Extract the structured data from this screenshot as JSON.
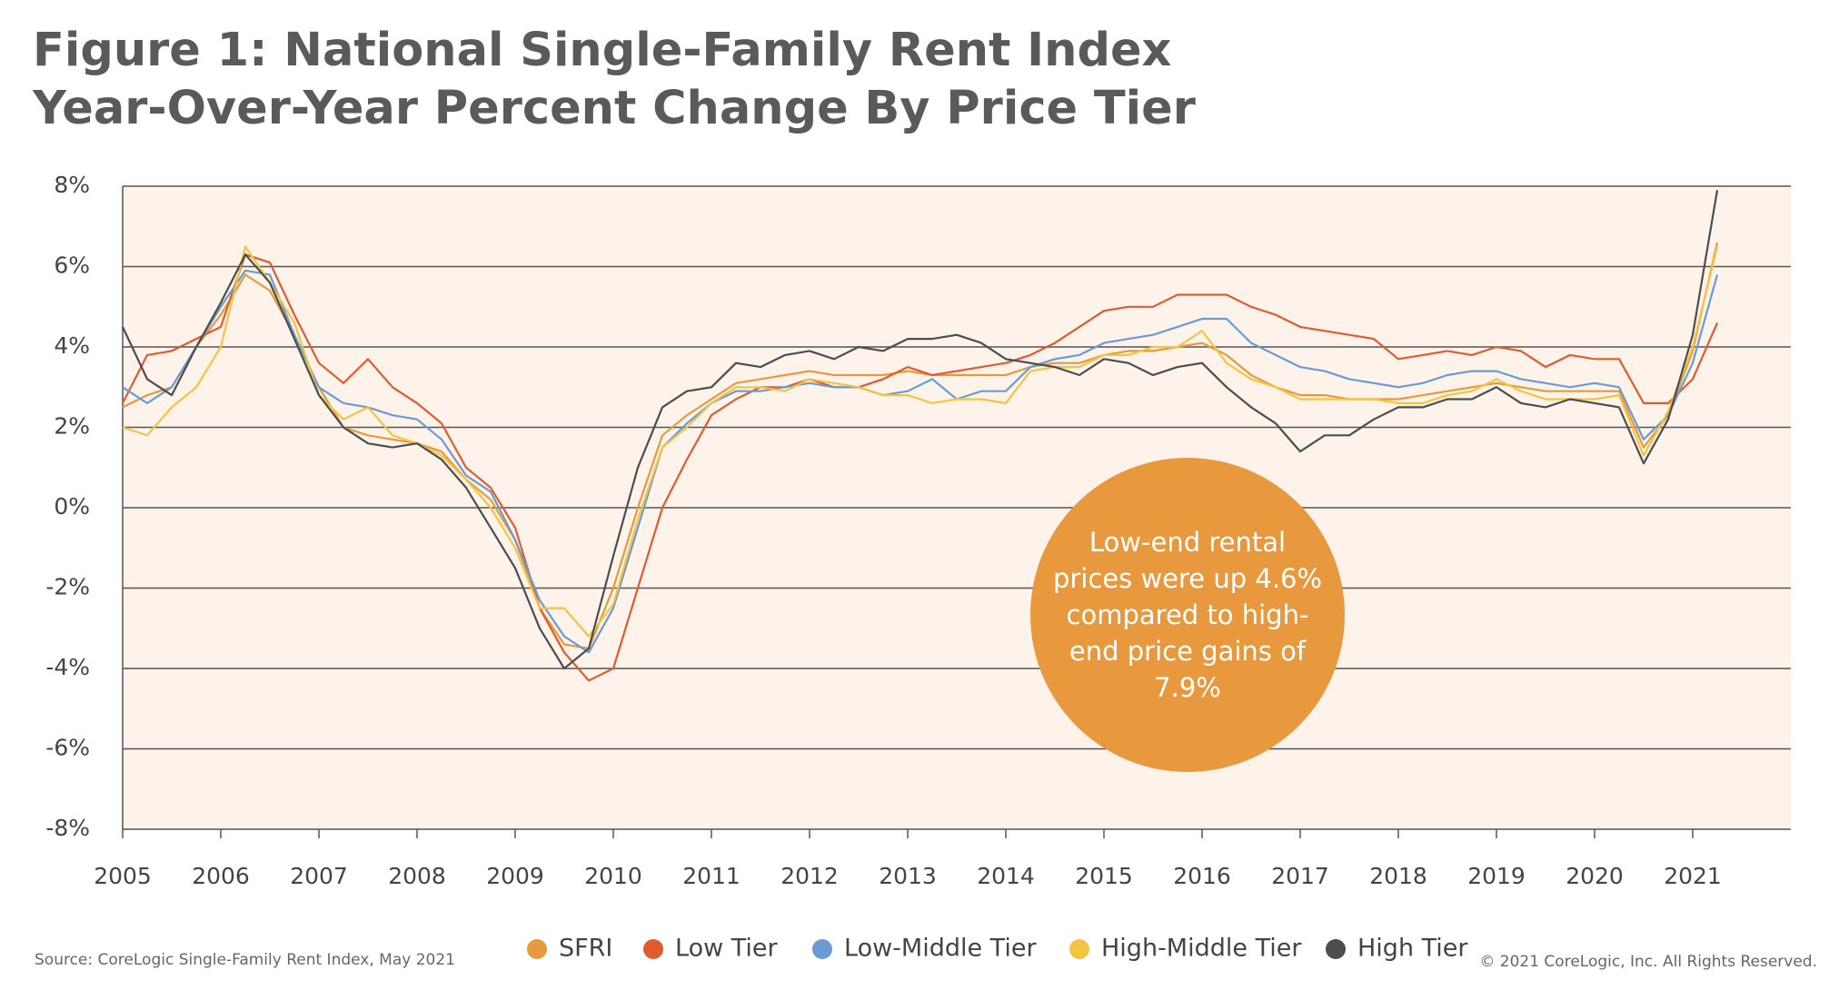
{
  "chart_data": {
    "type": "line",
    "title": [
      "Figure 1: National Single-Family Rent Index",
      "Year-Over-Year Percent Change By Price Tier"
    ],
    "x": [
      2005,
      2005.25,
      2005.5,
      2005.75,
      2006,
      2006.25,
      2006.5,
      2006.75,
      2007,
      2007.25,
      2007.5,
      2007.75,
      2008,
      2008.25,
      2008.5,
      2008.75,
      2009,
      2009.25,
      2009.5,
      2009.75,
      2010,
      2010.25,
      2010.5,
      2010.75,
      2011,
      2011.25,
      2011.5,
      2011.75,
      2012,
      2012.25,
      2012.5,
      2012.75,
      2013,
      2013.25,
      2013.5,
      2013.75,
      2014,
      2014.25,
      2014.5,
      2014.75,
      2015,
      2015.25,
      2015.5,
      2015.75,
      2016,
      2016.25,
      2016.5,
      2016.75,
      2017,
      2017.25,
      2017.5,
      2017.75,
      2018,
      2018.25,
      2018.5,
      2018.75,
      2019,
      2019.25,
      2019.5,
      2019.75,
      2020,
      2020.25,
      2020.5,
      2020.75,
      2021,
      2021.25
    ],
    "xlim": [
      2005,
      2022
    ],
    "xticks": [
      2005,
      2006,
      2007,
      2008,
      2009,
      2010,
      2011,
      2012,
      2013,
      2014,
      2015,
      2016,
      2017,
      2018,
      2019,
      2020,
      2021
    ],
    "ylim": [
      -8,
      8
    ],
    "yticks": [
      {
        "value": -8,
        "label": "-8%"
      },
      {
        "value": -6,
        "label": "-6%"
      },
      {
        "value": -4,
        "label": "-4%"
      },
      {
        "value": -2,
        "label": "-2%"
      },
      {
        "value": 0,
        "label": "0%"
      },
      {
        "value": 2,
        "label": "2%"
      },
      {
        "value": 4,
        "label": "4%"
      },
      {
        "value": 6,
        "label": "6%"
      },
      {
        "value": 8,
        "label": "8%"
      }
    ],
    "grid": true,
    "legend": "bottom",
    "series": [
      {
        "name": "SFRI",
        "color": "#e8993d",
        "values": [
          2.5,
          2.8,
          3.0,
          4.0,
          4.8,
          5.8,
          5.4,
          4.3,
          3.0,
          2.0,
          1.8,
          1.7,
          1.6,
          1.4,
          0.7,
          0.2,
          -0.8,
          -2.5,
          -3.4,
          -3.5,
          -2.0,
          0.0,
          1.8,
          2.3,
          2.7,
          3.1,
          3.2,
          3.3,
          3.4,
          3.3,
          3.3,
          3.3,
          3.4,
          3.3,
          3.3,
          3.3,
          3.3,
          3.5,
          3.6,
          3.6,
          3.8,
          3.9,
          3.9,
          4.0,
          4.1,
          3.8,
          3.3,
          3.0,
          2.8,
          2.8,
          2.7,
          2.7,
          2.7,
          2.8,
          2.9,
          3.0,
          3.1,
          3.0,
          2.9,
          2.9,
          2.9,
          2.9,
          1.5,
          2.3,
          3.9,
          6.6
        ]
      },
      {
        "name": "Low Tier",
        "color": "#e05c2e",
        "values": [
          2.6,
          3.8,
          3.9,
          4.2,
          4.5,
          6.3,
          6.1,
          4.8,
          3.6,
          3.1,
          3.7,
          3.0,
          2.6,
          2.1,
          1.0,
          0.5,
          -0.5,
          -2.5,
          -3.6,
          -4.3,
          -4.0,
          -2.0,
          0.0,
          1.2,
          2.3,
          2.7,
          3.0,
          3.0,
          3.2,
          3.0,
          3.0,
          3.2,
          3.5,
          3.3,
          3.4,
          3.5,
          3.6,
          3.8,
          4.1,
          4.5,
          4.9,
          5.0,
          5.0,
          5.3,
          5.3,
          5.3,
          5.0,
          4.8,
          4.5,
          4.4,
          4.3,
          4.2,
          3.7,
          3.8,
          3.9,
          3.8,
          4.0,
          3.9,
          3.5,
          3.8,
          3.7,
          3.7,
          2.6,
          2.6,
          3.2,
          4.6
        ]
      },
      {
        "name": "Low-Middle Tier",
        "color": "#6a9bd4",
        "values": [
          3.0,
          2.6,
          3.0,
          4.0,
          5.0,
          5.9,
          5.8,
          4.3,
          3.0,
          2.6,
          2.5,
          2.3,
          2.2,
          1.7,
          0.8,
          0.4,
          -0.8,
          -2.3,
          -3.2,
          -3.6,
          -2.5,
          -0.5,
          1.5,
          2.1,
          2.6,
          2.9,
          2.9,
          3.0,
          3.1,
          3.0,
          3.0,
          2.8,
          2.9,
          3.2,
          2.7,
          2.9,
          2.9,
          3.5,
          3.7,
          3.8,
          4.1,
          4.2,
          4.3,
          4.5,
          4.7,
          4.7,
          4.1,
          3.8,
          3.5,
          3.4,
          3.2,
          3.1,
          3.0,
          3.1,
          3.3,
          3.4,
          3.4,
          3.2,
          3.1,
          3.0,
          3.1,
          3.0,
          1.7,
          2.3,
          3.6,
          5.8
        ]
      },
      {
        "name": "High-Middle Tier",
        "color": "#f5c342",
        "values": [
          2.0,
          1.8,
          2.5,
          3.0,
          4.0,
          6.5,
          5.6,
          4.6,
          2.8,
          2.2,
          2.5,
          1.8,
          1.6,
          1.3,
          0.7,
          0.0,
          -1.0,
          -2.5,
          -2.5,
          -3.2,
          -2.4,
          -0.3,
          1.5,
          2.0,
          2.6,
          3.0,
          3.0,
          2.9,
          3.2,
          3.1,
          3.0,
          2.8,
          2.8,
          2.6,
          2.7,
          2.7,
          2.6,
          3.4,
          3.5,
          3.5,
          3.8,
          3.8,
          4.0,
          4.0,
          4.4,
          3.6,
          3.2,
          3.0,
          2.7,
          2.7,
          2.7,
          2.7,
          2.6,
          2.6,
          2.8,
          2.9,
          3.2,
          2.9,
          2.7,
          2.7,
          2.7,
          2.8,
          1.3,
          2.4,
          4.0,
          6.5
        ]
      },
      {
        "name": "High Tier",
        "color": "#4d4d4d",
        "values": [
          4.5,
          3.2,
          2.8,
          4.0,
          5.1,
          6.3,
          5.6,
          4.2,
          2.8,
          2.0,
          1.6,
          1.5,
          1.6,
          1.2,
          0.5,
          -0.5,
          -1.5,
          -3.0,
          -4.0,
          -3.5,
          -1.2,
          1.0,
          2.5,
          2.9,
          3.0,
          3.6,
          3.5,
          3.8,
          3.9,
          3.7,
          4.0,
          3.9,
          4.2,
          4.2,
          4.3,
          4.1,
          3.7,
          3.6,
          3.5,
          3.3,
          3.7,
          3.6,
          3.3,
          3.5,
          3.6,
          3.0,
          2.5,
          2.1,
          1.4,
          1.8,
          1.8,
          2.2,
          2.5,
          2.5,
          2.7,
          2.7,
          3.0,
          2.6,
          2.5,
          2.7,
          2.6,
          2.5,
          1.1,
          2.2,
          4.3,
          7.9
        ]
      }
    ],
    "annotation": "Low-end rental prices were up 4.6% compared to high-end price gains of 7.9%",
    "source": "Source: CoreLogic Single-Family Rent Index, May 2021",
    "copyright": "© 2021 CoreLogic, Inc. All Rights Reserved."
  }
}
